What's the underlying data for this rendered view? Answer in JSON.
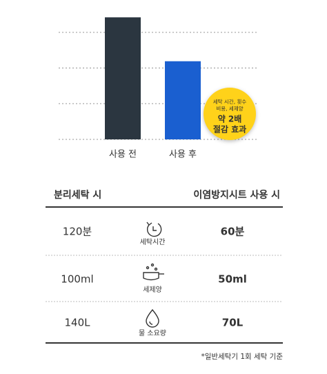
{
  "chart_data": {
    "type": "bar",
    "categories": [
      "사용 전",
      "사용 후"
    ],
    "values": [
      3.42,
      2.19
    ],
    "colors": [
      "#2b3640",
      "#1a5fd0"
    ],
    "ylim": [
      0,
      3.5
    ],
    "yticks": [
      1,
      2,
      3
    ],
    "grid": true,
    "annotation": [
      "세탁 시간, 횟수",
      "비용, 세제양",
      "약 2배",
      "절감 효과"
    ]
  },
  "table": {
    "header": [
      "분리세탁 시",
      "이염방지시트 사용 시"
    ],
    "rows": [
      [
        "120분",
        "세탁시간",
        "60분"
      ],
      [
        "100ml",
        "세제양",
        "50ml"
      ],
      [
        "140L",
        "물 소요량",
        "70L"
      ]
    ]
  },
  "footnote": "*일반세탁기 1회 세탁 기준"
}
